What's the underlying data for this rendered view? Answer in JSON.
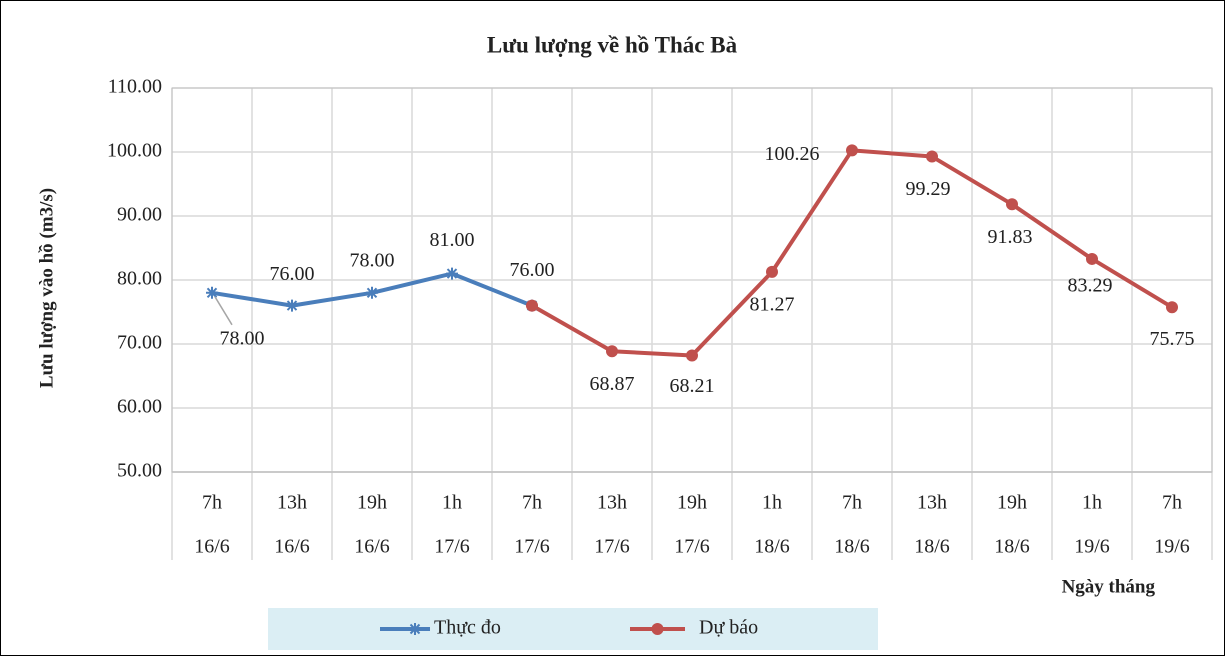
{
  "chart_data": {
    "type": "line",
    "title": "Lưu lượng về hồ Thác Bà",
    "y_label": "Lưu lượng vào hồ (m3/s)",
    "x_label": "Ngày tháng",
    "categories": [
      [
        "7h",
        "16/6"
      ],
      [
        "13h",
        "16/6"
      ],
      [
        "19h",
        "16/6"
      ],
      [
        "1h",
        "17/6"
      ],
      [
        "7h",
        "17/6"
      ],
      [
        "13h",
        "17/6"
      ],
      [
        "19h",
        "17/6"
      ],
      [
        "1h",
        "18/6"
      ],
      [
        "7h",
        "18/6"
      ],
      [
        "13h",
        "18/6"
      ],
      [
        "19h",
        "18/6"
      ],
      [
        "1h",
        "19/6"
      ],
      [
        "7h",
        "19/6"
      ]
    ],
    "series": [
      {
        "name": "Thực đo",
        "color": "#4a7ebb",
        "marker": "asterisk",
        "values": [
          78,
          76,
          78,
          81,
          76,
          null,
          null,
          null,
          null,
          null,
          null,
          null,
          null
        ],
        "value_labels": [
          "78.00",
          "76.00",
          "78.00",
          "81.00",
          "76.00",
          null,
          null,
          null,
          null,
          null,
          null,
          null,
          null
        ]
      },
      {
        "name": "Dự báo",
        "color": "#c0504d",
        "marker": "circle",
        "values": [
          null,
          null,
          null,
          null,
          76,
          68.87,
          68.21,
          81.27,
          100.26,
          99.29,
          91.83,
          83.29,
          75.75
        ],
        "value_labels": [
          null,
          null,
          null,
          null,
          null,
          "68.87",
          "68.21",
          "81.27",
          "100.26",
          "99.29",
          "91.83",
          "83.29",
          "75.75"
        ]
      }
    ],
    "ylim": [
      50,
      110
    ],
    "yticks": [
      {
        "value": 50,
        "label": "50.00"
      },
      {
        "value": 60,
        "label": "60.00"
      },
      {
        "value": 70,
        "label": "70.00"
      },
      {
        "value": 80,
        "label": "80.00"
      },
      {
        "value": 90,
        "label": "90.00"
      },
      {
        "value": 100,
        "label": "100.00"
      },
      {
        "value": 110,
        "label": "110.00"
      }
    ],
    "grid": true,
    "legend": "bottom"
  }
}
